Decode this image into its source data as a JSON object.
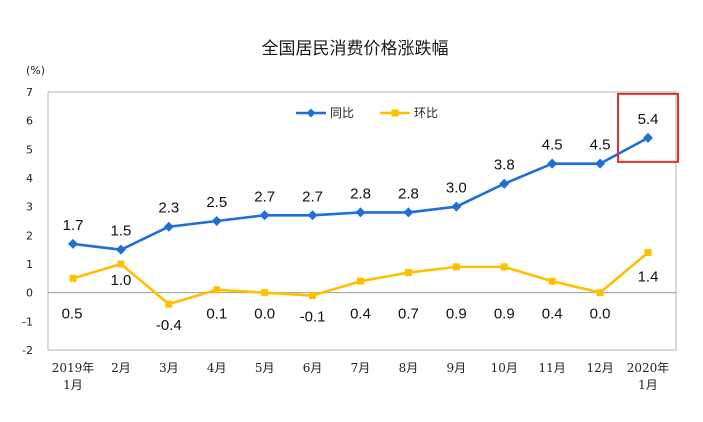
{
  "chart_data": {
    "type": "line",
    "title": "全国居民消费价格涨跌幅",
    "unit_label": "(%)",
    "categories": [
      [
        "2019年",
        "1月"
      ],
      [
        "2月"
      ],
      [
        "3月"
      ],
      [
        "4月"
      ],
      [
        "5月"
      ],
      [
        "6月"
      ],
      [
        "7月"
      ],
      [
        "8月"
      ],
      [
        "9月"
      ],
      [
        "10月"
      ],
      [
        "11月"
      ],
      [
        "12月"
      ],
      [
        "2020年",
        "1月"
      ]
    ],
    "ylim": [
      -2,
      7
    ],
    "yticks": [
      -2,
      -1,
      0,
      1,
      2,
      3,
      4,
      5,
      6,
      7
    ],
    "grid": false,
    "legend_position": "top-center",
    "series": [
      {
        "name": "同比",
        "color": "#1f6fd6",
        "marker": "diamond",
        "values": [
          1.7,
          1.5,
          2.3,
          2.5,
          2.7,
          2.7,
          2.8,
          2.8,
          3.0,
          3.8,
          4.5,
          4.5,
          5.4
        ],
        "labels": [
          "1.7",
          "1.5",
          "2.3",
          "2.5",
          "2.7",
          "2.7",
          "2.8",
          "2.8",
          "3.0",
          "3.8",
          "4.5",
          "4.5",
          "5.4"
        ]
      },
      {
        "name": "环比",
        "color": "#ffc000",
        "marker": "square",
        "values": [
          0.5,
          1.0,
          -0.4,
          0.1,
          0.0,
          -0.1,
          0.4,
          0.7,
          0.9,
          0.9,
          0.4,
          0.0,
          1.4
        ],
        "labels": [
          "0.5",
          "1.0",
          "-0.4",
          "0.1",
          "0.0",
          "-0.1",
          "0.4",
          "0.7",
          "0.9",
          "0.9",
          "0.4",
          "0.0",
          "1.4"
        ]
      }
    ],
    "highlight": {
      "series": 0,
      "index": 12,
      "color": "#e03030"
    }
  }
}
